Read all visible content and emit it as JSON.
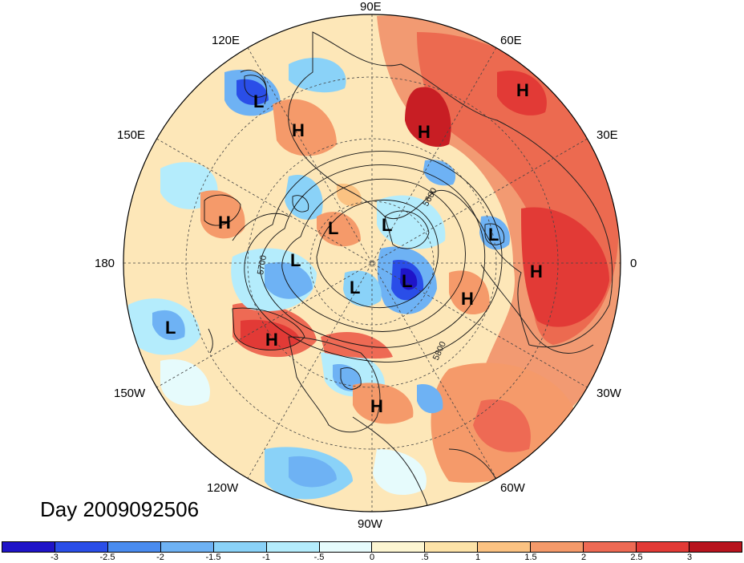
{
  "title": "Day 2009092506",
  "longitude_labels": {
    "lon_90e": "90E",
    "lon_60e": "60E",
    "lon_120e": "120E",
    "lon_30e": "30E",
    "lon_150e": "150E",
    "lon_180": "180",
    "lon_0": "0",
    "lon_150w": "150W",
    "lon_30w": "30W",
    "lon_120w": "120W",
    "lon_60w": "60W",
    "lon_90w": "90W"
  },
  "pressure_systems": [
    "L",
    "H",
    "H",
    "H",
    "H",
    "L",
    "L",
    "L",
    "H",
    "L",
    "L",
    "L",
    "H",
    "H",
    "L",
    "H",
    "L"
  ],
  "contour_labels": [
    "5600",
    "5700",
    "5800"
  ],
  "colorbar": {
    "colors": [
      "#1f14c8",
      "#2a4ee8",
      "#4a8cf0",
      "#6eb2f4",
      "#8ad2f8",
      "#b4ecfc",
      "#e6fbfc",
      "#fdf6d2",
      "#fde3a8",
      "#fbc282",
      "#f59a6a",
      "#ee6a54",
      "#e23a36",
      "#b8141e"
    ],
    "ticks": [
      "-3",
      "-2.5",
      "-2",
      "-1.5",
      "-1",
      "-.5",
      "0",
      ".5",
      "1",
      "1.5",
      "2",
      "2.5",
      "3"
    ]
  }
}
